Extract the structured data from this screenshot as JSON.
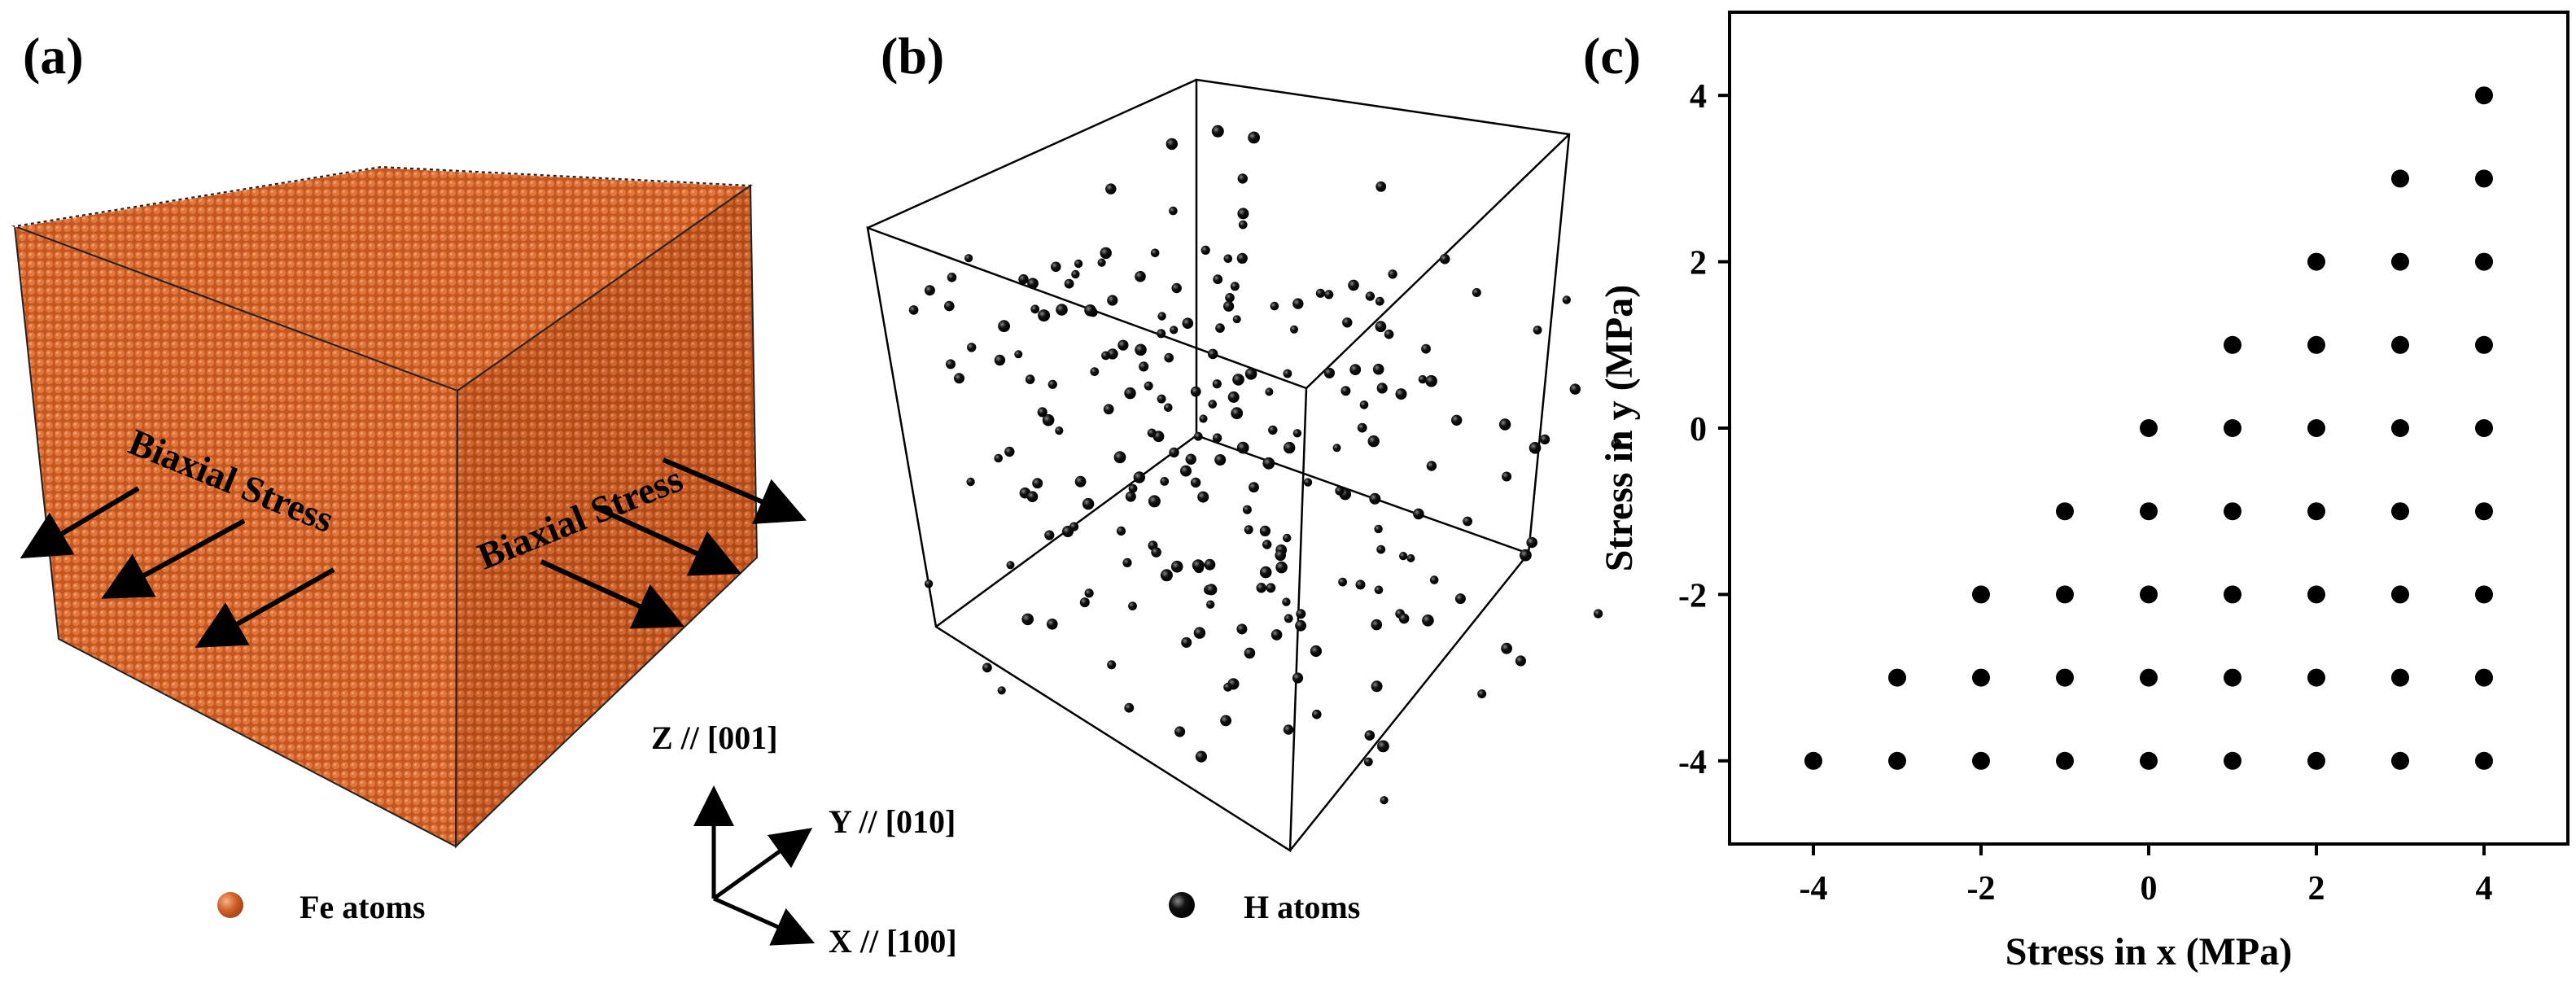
{
  "panels": {
    "a": {
      "label": "(a)",
      "stress_label_left": "Biaxial Stress",
      "stress_label_right": "Biaxial Stress",
      "legend": "Fe atoms",
      "atom_color": "#d2622a"
    },
    "b": {
      "label": "(b)",
      "legend": "H atoms",
      "atom_color": "#000000"
    },
    "c": {
      "label": "(c)"
    }
  },
  "axes_triad": {
    "z": "Z // [001]",
    "y": "Y // [010]",
    "x": "X // [100]"
  },
  "chart_data": {
    "type": "scatter",
    "title": "",
    "xlabel": "Stress in x (MPa)",
    "ylabel": "Stress in y (MPa)",
    "xlim": [
      -5,
      5
    ],
    "ylim": [
      -5,
      5
    ],
    "xticks": [
      -4,
      -2,
      0,
      2,
      4
    ],
    "yticks": [
      -4,
      -2,
      0,
      2,
      4
    ],
    "grid": false,
    "points": [
      [
        -4,
        -4
      ],
      [
        -3,
        -4
      ],
      [
        -3,
        -3
      ],
      [
        -2,
        -4
      ],
      [
        -2,
        -3
      ],
      [
        -2,
        -2
      ],
      [
        -1,
        -4
      ],
      [
        -1,
        -3
      ],
      [
        -1,
        -2
      ],
      [
        -1,
        -1
      ],
      [
        0,
        -4
      ],
      [
        0,
        -3
      ],
      [
        0,
        -2
      ],
      [
        0,
        -1
      ],
      [
        0,
        0
      ],
      [
        1,
        -4
      ],
      [
        1,
        -3
      ],
      [
        1,
        -2
      ],
      [
        1,
        -1
      ],
      [
        1,
        0
      ],
      [
        1,
        1
      ],
      [
        2,
        -4
      ],
      [
        2,
        -3
      ],
      [
        2,
        -2
      ],
      [
        2,
        -1
      ],
      [
        2,
        0
      ],
      [
        2,
        1
      ],
      [
        2,
        2
      ],
      [
        3,
        -4
      ],
      [
        3,
        -3
      ],
      [
        3,
        -2
      ],
      [
        3,
        -1
      ],
      [
        3,
        0
      ],
      [
        3,
        1
      ],
      [
        3,
        2
      ],
      [
        3,
        3
      ],
      [
        4,
        -4
      ],
      [
        4,
        -3
      ],
      [
        4,
        -2
      ],
      [
        4,
        -1
      ],
      [
        4,
        0
      ],
      [
        4,
        1
      ],
      [
        4,
        2
      ],
      [
        4,
        3
      ],
      [
        4,
        4
      ]
    ],
    "marker_color": "#000000"
  }
}
